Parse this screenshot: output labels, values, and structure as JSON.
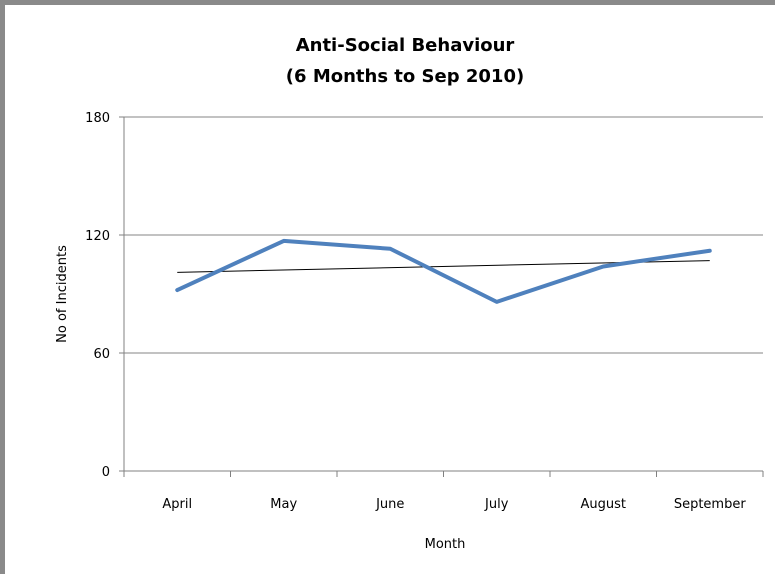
{
  "chart_data": {
    "type": "line",
    "title": "Anti-Social Behaviour",
    "subtitle": "(6 Months to Sep 2010)",
    "xlabel": "Month",
    "ylabel": "No of Incidents",
    "categories": [
      "April",
      "May",
      "June",
      "July",
      "August",
      "September"
    ],
    "series": [
      {
        "values": [
          92,
          117,
          113,
          86,
          104,
          112
        ],
        "color": "#4f81bd"
      }
    ],
    "trendline": {
      "values": [
        101,
        102.2,
        103.4,
        104.6,
        105.8,
        107
      ],
      "color": "#000000"
    },
    "ylim": [
      0,
      180
    ],
    "yticks": [
      0,
      60,
      120,
      180
    ],
    "grid": true,
    "legend": "none"
  }
}
